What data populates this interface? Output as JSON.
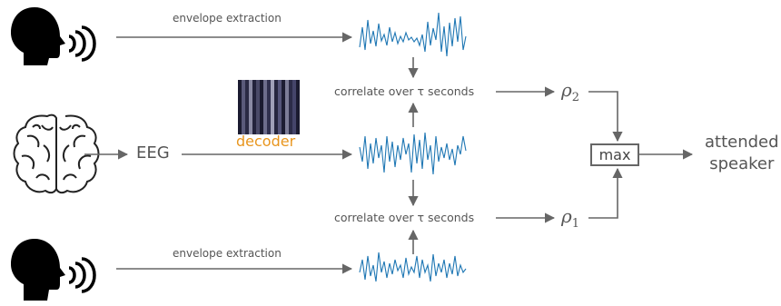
{
  "colors": {
    "arrow": "#666666",
    "signal": "#1f77b4",
    "decoder_label": "#e8951d",
    "text": "#555555",
    "icon": "#000000"
  },
  "icons": {
    "speaker_top": "speaking-head-icon",
    "brain": "brain-icon",
    "speaker_bottom": "speaking-head-icon"
  },
  "labels": {
    "envelope_top": "envelope extraction",
    "envelope_bottom": "envelope extraction",
    "eeg": "EEG",
    "decoder": "decoder",
    "correlate_top": "correlate over τ seconds",
    "correlate_bottom": "correlate over τ seconds",
    "rho_top": {
      "symbol": "ρ",
      "sub": "2"
    },
    "rho_bottom": {
      "symbol": "ρ",
      "sub": "1"
    },
    "max": "max",
    "output_line1": "attended",
    "output_line2": "speaker"
  }
}
